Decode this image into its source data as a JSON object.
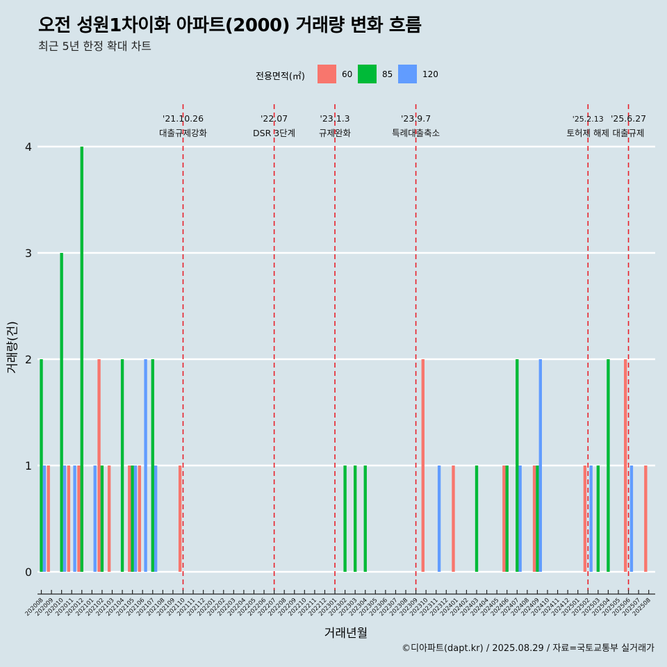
{
  "header": {
    "title": "오전 성원1차이화 아파트(2000) 거래량 변화 흐름",
    "subtitle": "최근 5년 한정 확대 차트"
  },
  "caption": "©디아파트(dapt.kr) / 2025.08.29 / 자료=국토교통부 실거래가",
  "legend": {
    "title": "전용면적(㎡)",
    "items": [
      {
        "label": "60",
        "color": "#F8766D"
      },
      {
        "label": "85",
        "color": "#00BA38"
      },
      {
        "label": "120",
        "color": "#619CFF"
      }
    ]
  },
  "chart_data": {
    "type": "bar",
    "title": "오전 성원1차이화 아파트(2000) 거래량 변화 흐름",
    "xlabel": "거래년월",
    "ylabel": "거래량(건)",
    "ylim": [
      0,
      4
    ],
    "yticks": [
      0,
      1,
      2,
      3,
      4
    ],
    "categories": [
      "202008",
      "202009",
      "202010",
      "202011",
      "202012",
      "202101",
      "202102",
      "202103",
      "202104",
      "202105",
      "202106",
      "202107",
      "202108",
      "202109",
      "202110",
      "202111",
      "202112",
      "202201",
      "202202",
      "202203",
      "202204",
      "202205",
      "202206",
      "202207",
      "202208",
      "202209",
      "202210",
      "202211",
      "202212",
      "202301",
      "202302",
      "202303",
      "202304",
      "202305",
      "202306",
      "202307",
      "202308",
      "202309",
      "202310",
      "202311",
      "202312",
      "202401",
      "202402",
      "202403",
      "202404",
      "202405",
      "202406",
      "202407",
      "202408",
      "202409",
      "202410",
      "202411",
      "202412",
      "202501",
      "202502",
      "202503",
      "202504",
      "202505",
      "202506",
      "202507",
      "202508"
    ],
    "series": [
      {
        "name": "60",
        "color": "#F8766D",
        "values": [
          0,
          1,
          0,
          1,
          1,
          0,
          2,
          1,
          0,
          1,
          1,
          0,
          0,
          0,
          1,
          0,
          0,
          0,
          0,
          0,
          0,
          0,
          0,
          0,
          0,
          0,
          0,
          0,
          0,
          0,
          0,
          0,
          0,
          0,
          0,
          0,
          0,
          0,
          2,
          0,
          0,
          1,
          0,
          0,
          0,
          0,
          1,
          0,
          0,
          1,
          0,
          0,
          0,
          0,
          1,
          0,
          0,
          0,
          2,
          0,
          1
        ]
      },
      {
        "name": "85",
        "color": "#00BA38",
        "values": [
          2,
          0,
          3,
          0,
          4,
          0,
          1,
          0,
          2,
          1,
          0,
          2,
          0,
          0,
          0,
          0,
          0,
          0,
          0,
          0,
          0,
          0,
          0,
          0,
          0,
          0,
          0,
          0,
          0,
          0,
          1,
          1,
          1,
          0,
          0,
          0,
          0,
          0,
          0,
          0,
          0,
          0,
          0,
          1,
          0,
          0,
          1,
          2,
          0,
          1,
          0,
          0,
          0,
          0,
          0,
          1,
          2,
          0,
          0,
          0,
          0
        ]
      },
      {
        "name": "120",
        "color": "#619CFF",
        "values": [
          1,
          0,
          1,
          1,
          0,
          1,
          0,
          0,
          0,
          1,
          2,
          1,
          0,
          0,
          0,
          0,
          0,
          0,
          0,
          0,
          0,
          0,
          0,
          0,
          0,
          0,
          0,
          0,
          0,
          0,
          0,
          0,
          0,
          0,
          0,
          0,
          0,
          0,
          0,
          1,
          0,
          0,
          0,
          0,
          0,
          0,
          0,
          1,
          0,
          2,
          0,
          0,
          0,
          0,
          1,
          0,
          0,
          0,
          1,
          0,
          0
        ]
      }
    ],
    "annotations": [
      {
        "date": "'21.10.26",
        "label": "대출규제강화",
        "category": "202110"
      },
      {
        "date": "'22.07",
        "label": "DSR 3단계",
        "category": "202207"
      },
      {
        "date": "'23.1.3",
        "label": "규제완화",
        "category": "202301"
      },
      {
        "date": "'23.9.7",
        "label": "특례대출축소",
        "category": "202309"
      },
      {
        "date": "'25.2.13",
        "label": "토허제 해제",
        "category": "202502"
      },
      {
        "date": "'25.6.27",
        "label": "대출규제",
        "category": "202506"
      }
    ],
    "grid": true,
    "legend_position": "top"
  }
}
